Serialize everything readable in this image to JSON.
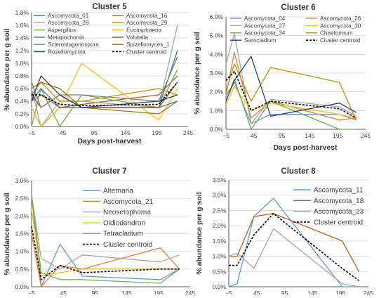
{
  "chart_data": [
    {
      "type": "line",
      "title": "Cluster 5",
      "xlabel": "Days post-harvest",
      "ylabel": "% abundance per g soil",
      "xlim": [
        -5,
        245
      ],
      "ylim": [
        0,
        1.8
      ],
      "x_ticks": [
        -5,
        45,
        95,
        145,
        195,
        245
      ],
      "y_ticks": [
        0,
        0.2,
        0.4,
        0.6,
        0.8,
        1.0,
        1.2,
        1.4,
        1.6,
        1.8
      ],
      "y_tick_labels": [
        "0.0%",
        "0.2%",
        "0.4%",
        "0.6%",
        "0.8%",
        "1.0%",
        "1.2%",
        "1.4%",
        "1.6%",
        "1.8%"
      ],
      "x": [
        -5,
        10,
        40,
        75,
        198,
        228
      ],
      "legend": "top",
      "series": [
        {
          "name": "Ascomycota_01",
          "color": "#2e75b6",
          "values": [
            0.3,
            0.0,
            0.3,
            0.3,
            0.3,
            1.2
          ]
        },
        {
          "name": "Ascomycota_16",
          "color": "#c55a11",
          "values": [
            0.4,
            0.5,
            0.3,
            0.35,
            0.5,
            0.8
          ]
        },
        {
          "name": "Ascomycota_28",
          "color": "#a5a5a5",
          "values": [
            0.6,
            0.0,
            0.4,
            0.4,
            0.3,
            1.6
          ]
        },
        {
          "name": "Ascomycota_29",
          "color": "#bf9000",
          "values": [
            0.5,
            0.7,
            0.4,
            0.4,
            0.6,
            0.5
          ]
        },
        {
          "name": "Aspergillus",
          "color": "#70ad47",
          "values": [
            0.0,
            0.6,
            0.0,
            0.5,
            0.3,
            0.9
          ]
        },
        {
          "name": "Eucasphaeria",
          "color": "#ffc000",
          "values": [
            0.3,
            0.0,
            0.3,
            1.0,
            0.1,
            0.6
          ]
        },
        {
          "name": "Metapochonia",
          "color": "#4472c4",
          "values": [
            0.4,
            0.6,
            0.3,
            0.3,
            0.3,
            0.4
          ]
        },
        {
          "name": "Volutella",
          "color": "#9e480e",
          "values": [
            0.5,
            0.3,
            0.5,
            0.3,
            0.3,
            0.7
          ]
        },
        {
          "name": "Sclerostagonospora",
          "color": "#7f7f7f",
          "values": [
            0.7,
            0.3,
            0.5,
            0.5,
            0.4,
            1.1
          ]
        },
        {
          "name": "Spizellomyces_1",
          "color": "#997300",
          "values": [
            0.6,
            0.7,
            0.6,
            0.3,
            0.2,
            0.4
          ]
        },
        {
          "name": "Rozellomycota",
          "color": "#264478",
          "values": [
            0.4,
            0.8,
            0.5,
            0.3,
            0.4,
            0.5
          ]
        },
        {
          "name": "Cluster centroid",
          "color": "#000000",
          "dashed": true,
          "values": [
            0.5,
            0.5,
            0.35,
            0.33,
            0.35,
            0.7
          ]
        }
      ]
    },
    {
      "type": "line",
      "title": "Cluster 6",
      "xlabel": "Days post-harvest",
      "ylabel": "% abundance per g soil",
      "xlim": [
        -5,
        245
      ],
      "ylim": [
        0,
        6.0
      ],
      "x_ticks": [
        -5,
        45,
        95,
        145,
        195,
        245
      ],
      "y_ticks": [
        0,
        1,
        2,
        3,
        4,
        5,
        6
      ],
      "y_tick_labels": [
        "0.0%",
        "1.0%",
        "2.0%",
        "3.0%",
        "4.0%",
        "5.0%",
        "6.0%"
      ],
      "x": [
        -5,
        10,
        40,
        75,
        198,
        228
      ],
      "legend": "top",
      "series": [
        {
          "name": "Ascomycota_04",
          "color": "#5b9bd5",
          "values": [
            1.8,
            2.5,
            0.3,
            0.8,
            0.8,
            0.5
          ]
        },
        {
          "name": "Ascomycota_26",
          "color": "#ed7d31",
          "values": [
            1.8,
            4.1,
            0.6,
            1.5,
            0.5,
            0.6
          ]
        },
        {
          "name": "Ascomycota_27",
          "color": "#a5a5a5",
          "values": [
            3.5,
            5.1,
            0.3,
            1.6,
            1.2,
            0.7
          ]
        },
        {
          "name": "Ascomycota_30",
          "color": "#ffc000",
          "values": [
            1.3,
            2.3,
            1.0,
            1.4,
            0.8,
            0.6
          ]
        },
        {
          "name": "Ascomycota_34",
          "color": "#70ad47",
          "values": [
            1.5,
            2.7,
            0.0,
            1.5,
            0.0,
            0.0
          ]
        },
        {
          "name": "Chaetomium",
          "color": "#bf9000",
          "values": [
            2.0,
            3.5,
            1.5,
            3.3,
            2.5,
            0.5
          ]
        },
        {
          "name": "Sarocladium",
          "color": "#264478",
          "values": [
            1.5,
            2.6,
            3.9,
            0.7,
            1.4,
            0.9
          ]
        },
        {
          "name": "Cluster centroid",
          "color": "#000000",
          "dashed": true,
          "values": [
            2.6,
            3.1,
            1.0,
            1.5,
            1.1,
            0.6
          ]
        }
      ]
    },
    {
      "type": "line",
      "title": "Cluster 7",
      "xlabel": "Days post-harvest",
      "ylabel": "% abundance per g soil",
      "xlim": [
        -5,
        245
      ],
      "ylim": [
        0,
        3.0
      ],
      "x_ticks": [
        -5,
        45,
        95,
        145,
        195,
        245
      ],
      "y_ticks": [
        0,
        0.5,
        1.0,
        1.5,
        2.0,
        2.5,
        3.0
      ],
      "y_tick_labels": [
        "0.0%",
        "0.5%",
        "1.0%",
        "1.5%",
        "2.0%",
        "2.5%",
        "3.0%"
      ],
      "x": [
        -5,
        10,
        40,
        75,
        198,
        228
      ],
      "legend": "right",
      "series": [
        {
          "name": "Alternaria",
          "color": "#5b9bd5",
          "values": [
            2.6,
            0.0,
            1.2,
            0.3,
            0.2,
            0.5
          ]
        },
        {
          "name": "Ascomycota_21",
          "color": "#ed7d31",
          "values": [
            1.5,
            0.0,
            0.6,
            0.5,
            1.1,
            0.5
          ]
        },
        {
          "name": "Neosetophoma",
          "color": "#a5a5a5",
          "values": [
            2.6,
            0.8,
            0.5,
            0.9,
            0.7,
            0.9
          ]
        },
        {
          "name": "Oidiodendron",
          "color": "#ffc000",
          "values": [
            2.2,
            0.3,
            0.4,
            0.5,
            0.5,
            0.5
          ]
        },
        {
          "name": "Tetracladium",
          "color": "#70ad47",
          "values": [
            2.6,
            0.4,
            0.2,
            0.2,
            0.1,
            0.5
          ]
        },
        {
          "name": "Cluster centroid",
          "color": "#000000",
          "dashed": true,
          "values": [
            1.7,
            0.2,
            0.6,
            0.4,
            0.5,
            0.5
          ]
        }
      ]
    },
    {
      "type": "line",
      "title": "Cluster 8",
      "xlabel": "Days post-harvest",
      "ylabel": "% abundance per g soil",
      "xlim": [
        -5,
        245
      ],
      "ylim": [
        0,
        3.5
      ],
      "x_ticks": [
        -5,
        45,
        95,
        145,
        195,
        245
      ],
      "y_ticks": [
        0,
        0.5,
        1.0,
        1.5,
        2.0,
        2.5,
        3.0,
        3.5
      ],
      "y_tick_labels": [
        "0.0%",
        "0.5%",
        "1.0%",
        "1.5%",
        "2.0%",
        "2.5%",
        "3.0%",
        "3.5%"
      ],
      "x": [
        -5,
        10,
        40,
        75,
        198,
        228
      ],
      "legend": "right",
      "series": [
        {
          "name": "Ascomycota_11",
          "color": "#5b9bd5",
          "values": [
            0.0,
            0.1,
            2.3,
            2.9,
            0.0,
            0.0
          ]
        },
        {
          "name": "Ascomycota_18",
          "color": "#c55a11",
          "values": [
            1.0,
            1.0,
            2.3,
            2.4,
            1.5,
            0.5
          ]
        },
        {
          "name": "Ascomycota_23",
          "color": "#a5a5a5",
          "values": [
            1.0,
            1.1,
            0.6,
            1.9,
            0.1,
            0.0
          ]
        },
        {
          "name": "Cluster centroid",
          "color": "#000000",
          "dashed": true,
          "values": [
            0.7,
            0.7,
            1.7,
            2.4,
            0.6,
            0.2
          ]
        }
      ]
    }
  ]
}
